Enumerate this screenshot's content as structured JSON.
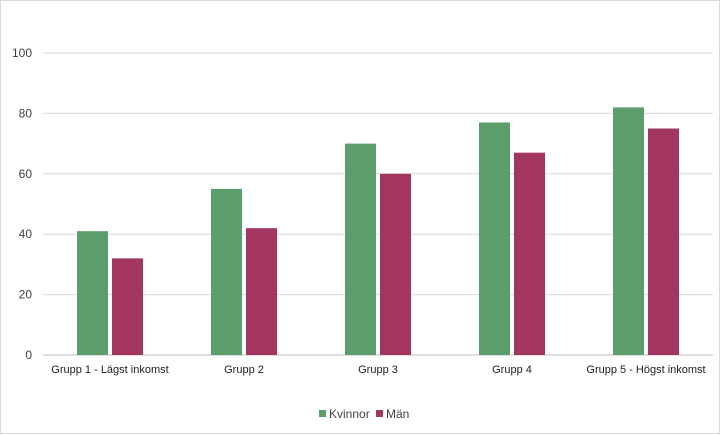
{
  "chart_data": {
    "type": "bar",
    "categories": [
      "Grupp 1 - Lägst inkomst",
      "Grupp 2",
      "Grupp 3",
      "Grupp 4",
      "Grupp 5 - Högst inkomst"
    ],
    "series": [
      {
        "name": "Kvinnor",
        "color": "#5b9e6b",
        "values": [
          41,
          55,
          70,
          77,
          82
        ]
      },
      {
        "name": "Män",
        "color": "#a33661",
        "values": [
          32,
          42,
          60,
          67,
          75
        ]
      }
    ],
    "title": "",
    "xlabel": "",
    "ylabel": "",
    "ylim": [
      0,
      100
    ],
    "yticks": [
      "0",
      "20",
      "40",
      "60",
      "80",
      "100"
    ],
    "grid": true,
    "legend": "bottom-center"
  }
}
